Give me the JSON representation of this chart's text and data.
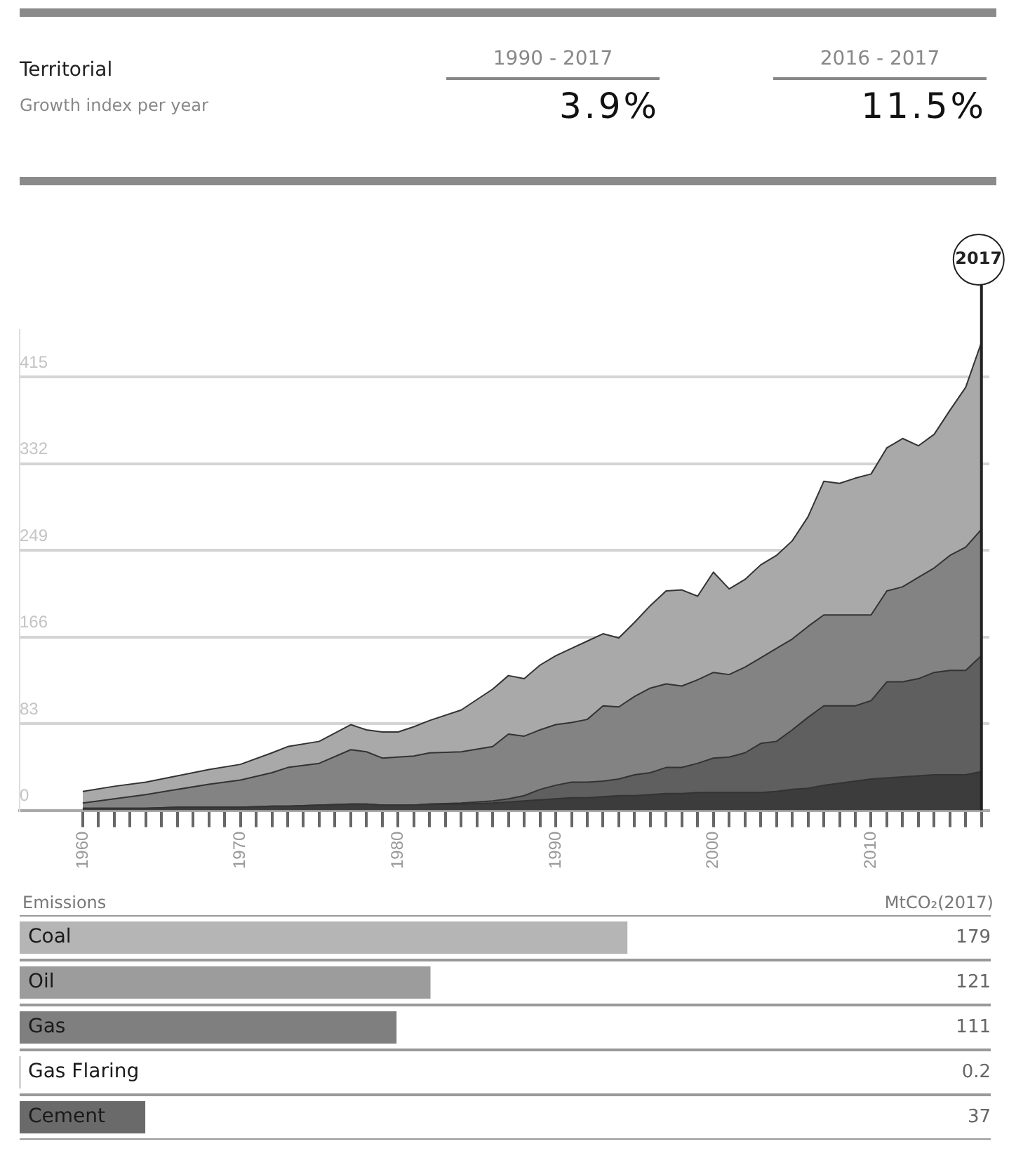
{
  "chart_data": [
    {
      "type": "area",
      "title": "Territorial",
      "subtitle": "Growth index per year",
      "annotations": [
        "1990 - 2017",
        "3.9%",
        "2016 - 2017",
        "11.5%"
      ],
      "stacked": true,
      "grid": "y",
      "x": [
        1960,
        1962,
        1964,
        1966,
        1968,
        1970,
        1972,
        1973,
        1975,
        1977,
        1978,
        1979,
        1980,
        1981,
        1982,
        1984,
        1986,
        1987,
        1988,
        1989,
        1990,
        1991,
        1992,
        1993,
        1994,
        1995,
        1996,
        1997,
        1998,
        1999,
        2000,
        2001,
        2002,
        2003,
        2004,
        2005,
        2006,
        2007,
        2008,
        2009,
        2010,
        2011,
        2012,
        2013,
        2014,
        2015,
        2016,
        2017
      ],
      "series": [
        {
          "color": "#3c3c3c",
          "values": [
            2,
            2,
            2,
            3,
            3,
            3,
            4,
            4,
            5,
            6,
            6,
            5,
            5,
            5,
            6,
            6,
            7,
            8,
            9,
            10,
            11,
            12,
            12,
            13,
            14,
            14,
            15,
            16,
            16,
            17,
            17,
            17,
            17,
            17,
            18,
            20,
            21,
            24,
            26,
            28,
            30,
            31,
            32,
            33,
            34,
            34,
            34,
            37
          ]
        },
        {
          "color": "#5f5f5f",
          "values": [
            0,
            0,
            0,
            0,
            0,
            0,
            0,
            0,
            0,
            0,
            0,
            0,
            0,
            0,
            0,
            1,
            2,
            3,
            5,
            10,
            13,
            15,
            15,
            15,
            16,
            20,
            21,
            25,
            25,
            28,
            33,
            34,
            38,
            47,
            48,
            57,
            68,
            76,
            74,
            72,
            75,
            92,
            91,
            93,
            98,
            100,
            100,
            111
          ]
        },
        {
          "color": "#838383",
          "values": [
            5,
            9,
            13,
            17,
            22,
            26,
            32,
            37,
            40,
            52,
            50,
            45,
            46,
            47,
            49,
            49,
            52,
            62,
            57,
            57,
            58,
            57,
            60,
            72,
            69,
            75,
            81,
            80,
            78,
            80,
            82,
            79,
            82,
            82,
            89,
            87,
            87,
            87,
            87,
            87,
            82,
            87,
            91,
            97,
            100,
            110,
            118,
            121
          ]
        },
        {
          "color": "#a9a9a9",
          "values": [
            11,
            12,
            12,
            13,
            14,
            15,
            19,
            20,
            21,
            24,
            21,
            25,
            24,
            28,
            31,
            40,
            55,
            56,
            55,
            62,
            66,
            71,
            75,
            69,
            66,
            71,
            79,
            89,
            92,
            80,
            96,
            82,
            84,
            89,
            89,
            94,
            105,
            128,
            126,
            131,
            135,
            137,
            142,
            126,
            128,
            139,
            153,
            179
          ]
        }
      ],
      "xlim": [
        1956,
        2017.5
      ],
      "ylim": [
        0,
        460
      ],
      "yticks": [
        0,
        83,
        166,
        249,
        332,
        415
      ],
      "xticks": [
        1960,
        {
          "value": 1961,
          "label": null
        },
        {
          "value": 1962,
          "label": null
        },
        {
          "value": 1963,
          "label": null
        },
        {
          "value": 1964,
          "label": null
        },
        {
          "value": 1965,
          "label": null
        },
        {
          "value": 1966,
          "label": null
        },
        {
          "value": 1967,
          "label": null
        },
        {
          "value": 1968,
          "label": null
        },
        {
          "value": 1969,
          "label": null
        },
        1970,
        {
          "value": 1971,
          "label": null
        },
        {
          "value": 1972,
          "label": null
        },
        {
          "value": 1973,
          "label": null
        },
        {
          "value": 1974,
          "label": null
        },
        {
          "value": 1975,
          "label": null
        },
        {
          "value": 1976,
          "label": null
        },
        {
          "value": 1977,
          "label": null
        },
        {
          "value": 1978,
          "label": null
        },
        {
          "value": 1979,
          "label": null
        },
        1980,
        {
          "value": 1981,
          "label": null
        },
        {
          "value": 1982,
          "label": null
        },
        {
          "value": 1983,
          "label": null
        },
        {
          "value": 1984,
          "label": null
        },
        {
          "value": 1985,
          "label": null
        },
        {
          "value": 1986,
          "label": null
        },
        {
          "value": 1987,
          "label": null
        },
        {
          "value": 1988,
          "label": null
        },
        {
          "value": 1989,
          "label": null
        },
        1990,
        {
          "value": 1991,
          "label": null
        },
        {
          "value": 1992,
          "label": null
        },
        {
          "value": 1993,
          "label": null
        },
        {
          "value": 1994,
          "label": null
        },
        {
          "value": 1995,
          "label": null
        },
        {
          "value": 1996,
          "label": null
        },
        {
          "value": 1997,
          "label": null
        },
        {
          "value": 1998,
          "label": null
        },
        {
          "value": 1999,
          "label": null
        },
        2000,
        {
          "value": 2001,
          "label": null
        },
        {
          "value": 2002,
          "label": null
        },
        {
          "value": 2003,
          "label": null
        },
        {
          "value": 2004,
          "label": null
        },
        {
          "value": 2005,
          "label": null
        },
        {
          "value": 2006,
          "label": null
        },
        {
          "value": 2007,
          "label": null
        },
        {
          "value": 2008,
          "label": null
        },
        {
          "value": 2009,
          "label": null
        },
        2010,
        {
          "value": 2011,
          "label": null
        },
        {
          "value": 2012,
          "label": null
        },
        {
          "value": 2013,
          "label": null
        },
        {
          "value": 2014,
          "label": null
        },
        {
          "value": 2015,
          "label": null
        },
        {
          "value": 2016,
          "label": null
        },
        {
          "value": 2017,
          "label": null
        }
      ],
      "ref_lines": [
        {
          "axis": "x",
          "value": 2017,
          "label": "2017",
          "color": "#222222"
        }
      ]
    },
    {
      "type": "bar",
      "orientation": "horizontal",
      "title": "Emissions",
      "xlabel": "MtCO₂(2017)",
      "categories": [
        "Coal",
        "Oil",
        "Gas",
        "Gas Flaring",
        "Cement"
      ],
      "values": [
        179,
        121,
        111,
        0.2,
        37
      ],
      "colors": [
        "#b5b5b5",
        "#9c9c9c",
        "#7f7f7f",
        "#5a5a5a",
        "#6a6a6a"
      ],
      "xlim": [
        0,
        286
      ],
      "data_labels": true,
      "grid": "y",
      "tick_labels": "y"
    }
  ]
}
